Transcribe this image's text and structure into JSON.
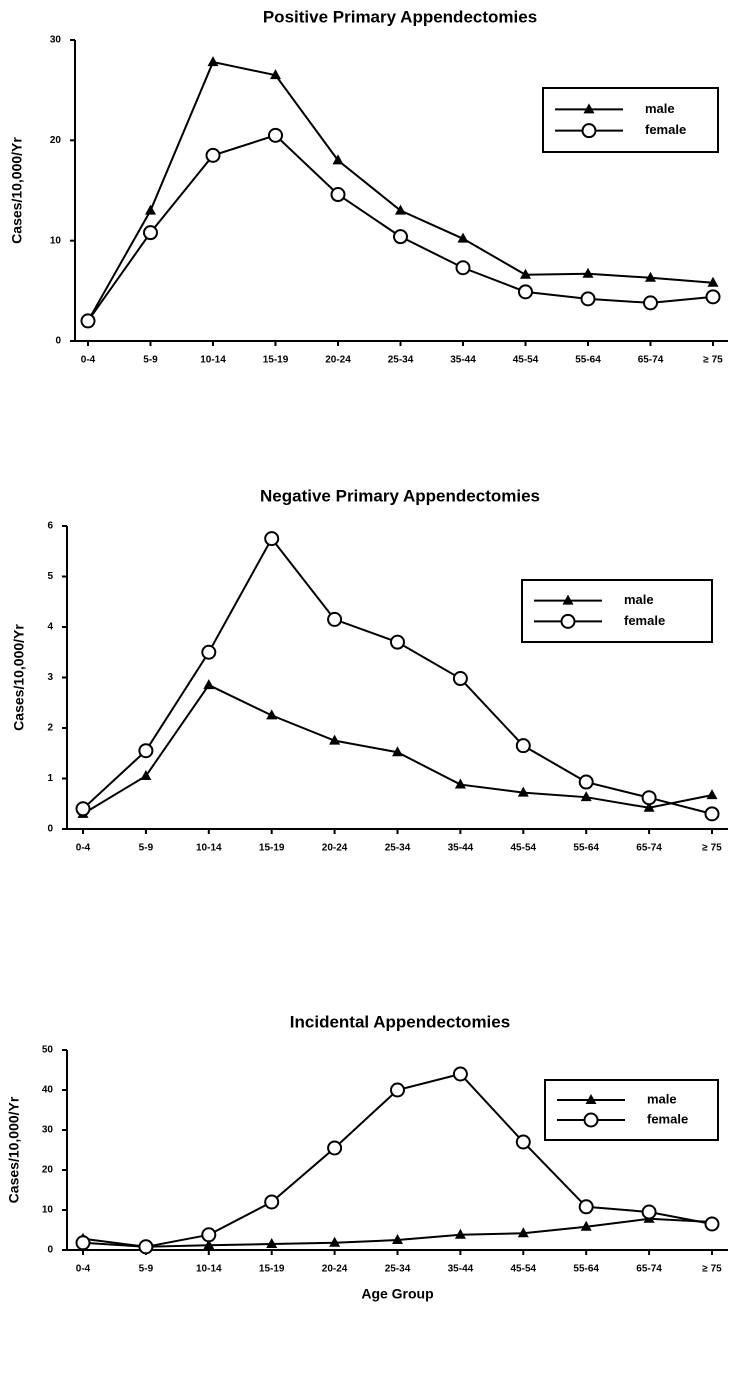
{
  "chart_data": [
    {
      "type": "line",
      "title": "Positive Primary Appendectomies",
      "y_label": "Cases/10,000/Yr",
      "categories": [
        "0-4",
        "5-9",
        "10-14",
        "15-19",
        "20-24",
        "25-34",
        "35-44",
        "45-54",
        "55-64",
        "65-74",
        "≥ 75"
      ],
      "series": [
        {
          "name": "male",
          "color": "#000000",
          "marker": "triangle",
          "values": [
            2.0,
            13.0,
            27.8,
            26.5,
            18.0,
            13.0,
            10.2,
            6.6,
            6.7,
            6.3,
            5.8
          ]
        },
        {
          "name": "female",
          "color": "#000000",
          "marker": "circle",
          "values": [
            2.0,
            10.8,
            18.5,
            20.5,
            14.6,
            10.4,
            7.3,
            4.9,
            4.2,
            3.8,
            4.4
          ]
        }
      ],
      "ylim": [
        0,
        30
      ],
      "yticks": [
        0,
        10,
        20,
        30
      ],
      "legend": "upper right"
    },
    {
      "type": "line",
      "title": "Negative Primary Appendectomies",
      "y_label": "Cases/10,000/Yr",
      "categories": [
        "0-4",
        "5-9",
        "10-14",
        "15-19",
        "20-24",
        "25-34",
        "35-44",
        "45-54",
        "55-64",
        "65-74",
        "≥ 75"
      ],
      "series": [
        {
          "name": "male",
          "color": "#000000",
          "marker": "triangle",
          "values": [
            0.3,
            1.05,
            2.85,
            2.25,
            1.75,
            1.52,
            0.88,
            0.72,
            0.63,
            0.42,
            0.67
          ]
        },
        {
          "name": "female",
          "color": "#000000",
          "marker": "circle",
          "values": [
            0.4,
            1.55,
            3.5,
            5.75,
            4.15,
            3.7,
            2.98,
            1.65,
            0.93,
            0.62,
            0.3
          ]
        }
      ],
      "ylim": [
        0,
        6
      ],
      "yticks": [
        0,
        1,
        2,
        3,
        4,
        5,
        6
      ],
      "legend": "upper right"
    },
    {
      "type": "line",
      "title": "Incidental Appendectomies",
      "y_label": "Cases/10,000/Yr",
      "x_label": "Age Group",
      "categories": [
        "0-4",
        "5-9",
        "10-14",
        "15-19",
        "20-24",
        "25-34",
        "35-44",
        "45-54",
        "55-64",
        "65-74",
        "≥ 75"
      ],
      "series": [
        {
          "name": "male",
          "color": "#000000",
          "marker": "triangle",
          "values": [
            2.8,
            0.8,
            1.2,
            1.5,
            1.8,
            2.5,
            3.8,
            4.2,
            5.8,
            7.8,
            7.0
          ]
        },
        {
          "name": "female",
          "color": "#000000",
          "marker": "circle",
          "values": [
            1.8,
            0.8,
            3.8,
            12.0,
            25.5,
            40.0,
            44.0,
            27.0,
            10.8,
            9.5,
            6.5
          ]
        }
      ],
      "ylim": [
        0,
        50
      ],
      "yticks": [
        0,
        10,
        20,
        30,
        40,
        50
      ],
      "legend": "upper right"
    }
  ]
}
